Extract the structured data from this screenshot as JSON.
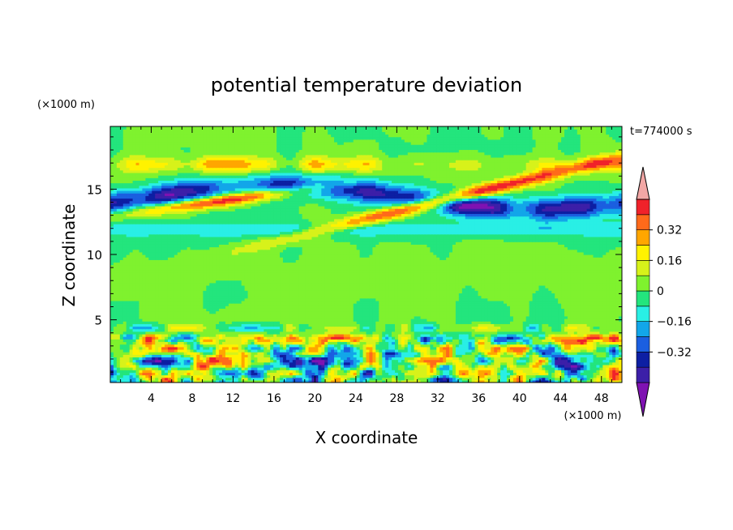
{
  "chart_data": {
    "type": "heatmap",
    "title": "potential temperature deviation",
    "xlabel": "X coordinate",
    "ylabel": "Z coordinate",
    "x_unit": "(×1000 m)",
    "y_unit": "(×1000 m)",
    "time_label": "t=774000 s",
    "xlim": [
      0,
      50
    ],
    "ylim": [
      0.2,
      19.8
    ],
    "x_ticks": [
      "4",
      "8",
      "12",
      "16",
      "20",
      "24",
      "28",
      "32",
      "36",
      "40",
      "44",
      "48"
    ],
    "y_ticks": [
      "5",
      "10",
      "15"
    ],
    "colorbar": {
      "levels": [
        -0.48,
        -0.4,
        -0.32,
        -0.24,
        -0.16,
        -0.08,
        0,
        0.08,
        0.16,
        0.24,
        0.32,
        0.4
      ],
      "tick_labels": [
        "0.32",
        "0.16",
        "0",
        "−0.16",
        "−0.32"
      ],
      "colors": [
        "#7f12b2",
        "#3c1fa8",
        "#0d1fa3",
        "#1b5fe0",
        "#12a6e9",
        "#29efe5",
        "#23e57d",
        "#7ff22e",
        "#d7f21a",
        "#fff200",
        "#ffa600",
        "#ff6a1a",
        "#f0222a",
        "#f2a7a5"
      ]
    },
    "features": [
      {
        "name": "upper warm band",
        "x": [
          0,
          50
        ],
        "z": [
          12.8,
          17.5
        ],
        "value_range": [
          0.24,
          0.48
        ]
      },
      {
        "name": "upper cold band",
        "x": [
          0,
          50
        ],
        "z": [
          13.5,
          16.3
        ],
        "value_range": [
          -0.48,
          -0.32
        ]
      },
      {
        "name": "cold layer",
        "x": [
          0,
          50
        ],
        "z": [
          11.3,
          12.4
        ],
        "value_range": [
          -0.16,
          -0.08
        ]
      },
      {
        "name": "boundary layer turbulence",
        "x": [
          0,
          50
        ],
        "z": [
          0.2,
          3.6
        ],
        "value_range": [
          -0.48,
          0.48
        ]
      }
    ]
  }
}
